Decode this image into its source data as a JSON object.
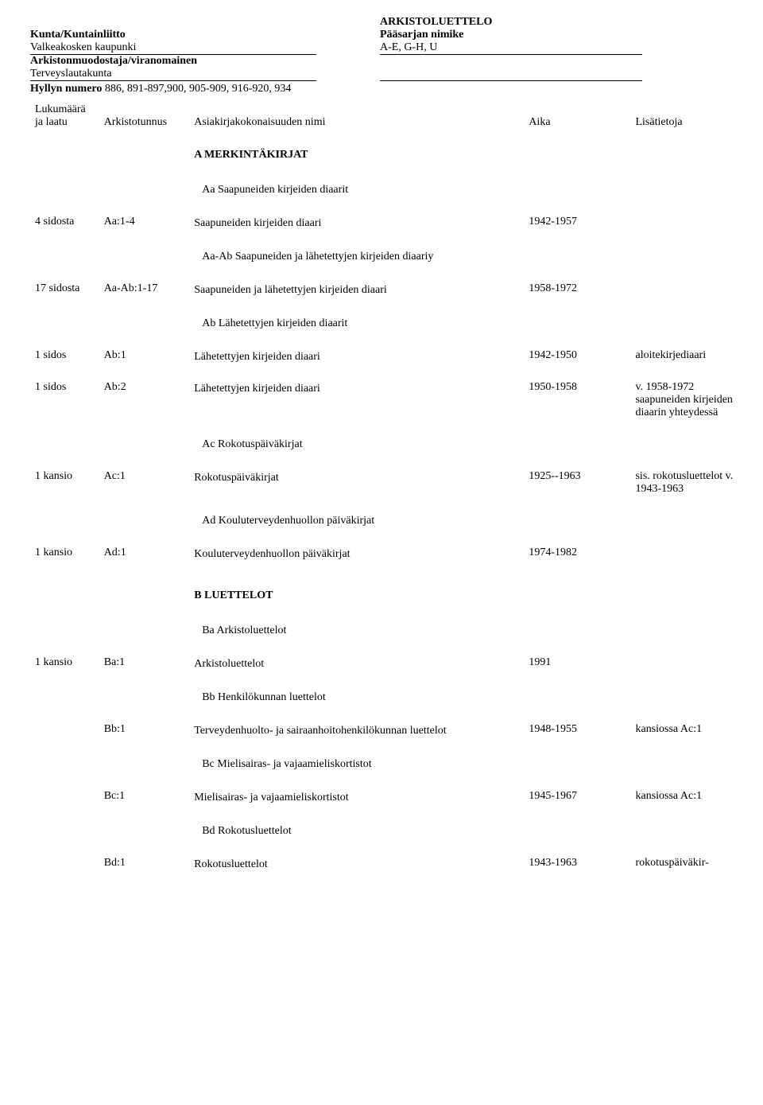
{
  "header": {
    "arkistoluettelo": "ARKISTOLUETTELO",
    "kunta_label": "Kunta/Kuntainliitto",
    "paasarja_label": "Pääsarjan nimike",
    "kunta_value": "Valkeakosken kaupunki",
    "paasarja_value": "A-E, G-H, U",
    "arkistonmuodostaja_label": "Arkistonmuodostaja/viranomainen",
    "arkistonmuodostaja_value": "Terveyslautakunta",
    "hyllyn_numero_label": "Hyllyn numero",
    "hyllyn_numero_value": "886, 891-897,900, 905-909, 916-920, 934"
  },
  "columns": {
    "col1": "Lukumäärä ja laatu",
    "col2": "Arkistotunnus",
    "col3": "Asiakirjakokonaisuuden nimi",
    "col4": "Aika",
    "col5": "Lisätietoja"
  },
  "sections": {
    "a_heading": "A   MERKINTÄKIRJAT",
    "aa_heading": "Aa Saapuneiden kirjeiden diaarit",
    "aaab_heading": "Aa-Ab Saapuneiden ja lähetettyjen kirjeiden diaariy",
    "ab_heading": "Ab Lähetettyjen kirjeiden diaarit",
    "ac_heading": "Ac Rokotuspäiväkirjat",
    "ad_heading": "Ad Kouluterveydenhuollon päiväkirjat",
    "b_heading": "B   LUETTELOT",
    "ba_heading": "Ba Arkistoluettelot",
    "bb_heading": "Bb Henkilökunnan luettelot",
    "bc_heading": "Bc Mielisairas- ja vajaamieliskortistot",
    "bd_heading": "Bd Rokotusluettelot"
  },
  "rows": {
    "r1": {
      "qty": "4 sidosta",
      "id": "Aa:1-4",
      "name": "Saapuneiden kirjeiden diaari",
      "time": "1942-1957",
      "note": ""
    },
    "r2": {
      "qty": "17 sidosta",
      "id": "Aa-Ab:1-17",
      "name": "Saapuneiden ja lähetettyjen kirjeiden diaari",
      "time": "1958-1972",
      "note": ""
    },
    "r3": {
      "qty": "1 sidos",
      "id": "Ab:1",
      "name": "Lähetettyjen kirjeiden diaari",
      "time": "1942-1950",
      "note": "aloitekirjediaari"
    },
    "r4": {
      "qty": "1 sidos",
      "id": "Ab:2",
      "name": "Lähetettyjen kirjeiden diaari",
      "time": "1950-1958",
      "note": "v. 1958-1972 saapuneiden kirjeiden diaarin yhteydessä"
    },
    "r5": {
      "qty": "1 kansio",
      "id": "Ac:1",
      "name": "Rokotuspäiväkirjat",
      "time": "1925--1963",
      "note": "sis. rokotusluettelot v. 1943-1963"
    },
    "r6": {
      "qty": "1 kansio",
      "id": "Ad:1",
      "name": "Kouluterveydenhuollon päiväkirjat",
      "time": "1974-1982",
      "note": ""
    },
    "r7": {
      "qty": "1 kansio",
      "id": "Ba:1",
      "name": "Arkistoluettelot",
      "time": "1991",
      "note": ""
    },
    "r8": {
      "qty": "",
      "id": "Bb:1",
      "name": "Terveydenhuolto- ja sairaanhoitohenkilökunnan luettelot",
      "time": "1948-1955",
      "note": "kansiossa Ac:1"
    },
    "r9": {
      "qty": "",
      "id": "Bc:1",
      "name": "Mielisairas- ja vajaamieliskortistot",
      "time": "1945-1967",
      "note": "kansiossa Ac:1"
    },
    "r10": {
      "qty": "",
      "id": "Bd:1",
      "name": "Rokotusluettelot",
      "time": "1943-1963",
      "note": "rokotuspäiväkir-"
    }
  }
}
